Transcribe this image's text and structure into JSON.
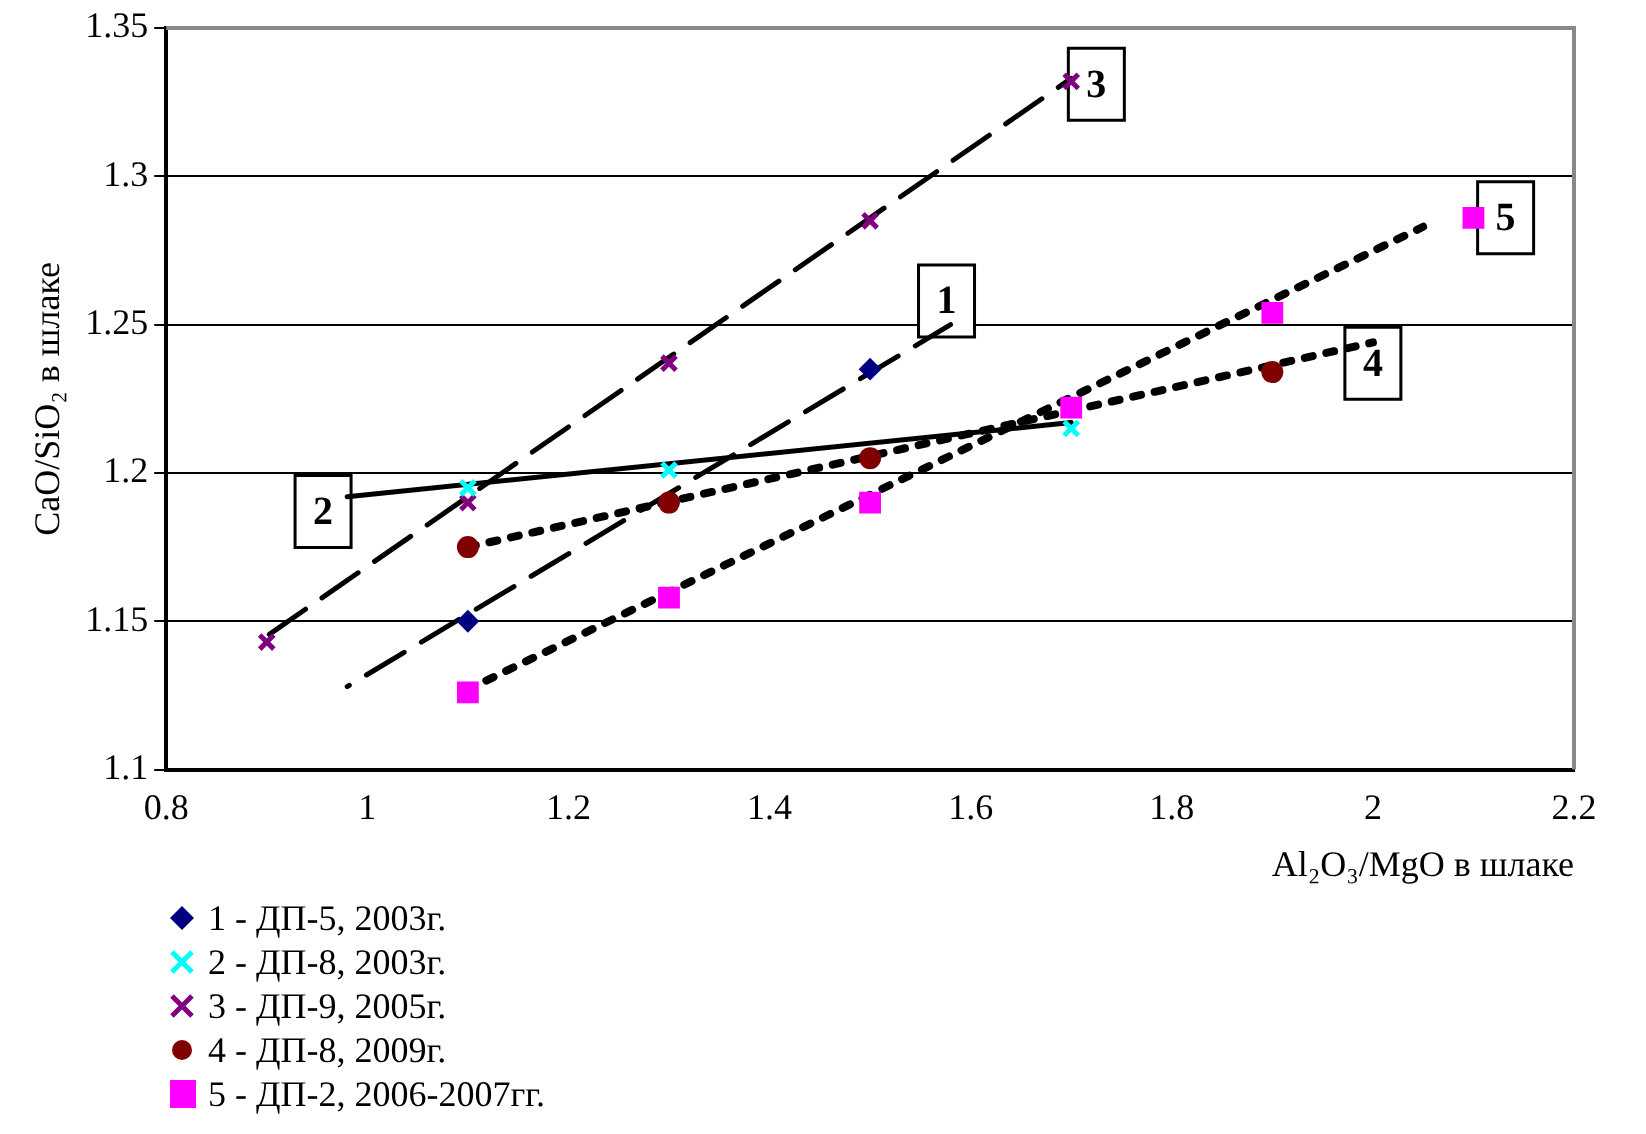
{
  "chart_data": {
    "type": "scatter",
    "xlabel": "Al₂O₃/MgO в шлаке",
    "ylabel": "CaO/SiO₂ в шлаке",
    "xlim": [
      0.8,
      2.2
    ],
    "xticks": [
      0.8,
      1,
      1.2,
      1.4,
      1.6,
      1.8,
      2,
      2.2
    ],
    "ylim": [
      1.1,
      1.35
    ],
    "yticks": [
      1.1,
      1.15,
      1.2,
      1.25,
      1.3,
      1.35
    ],
    "grid": "y",
    "legend": "bottom",
    "series": [
      {
        "name": "1 - ДП-5, 2003г.",
        "type": "scatter",
        "marker": "diamond",
        "color": "#000080",
        "x": [
          1.1,
          1.5
        ],
        "values": [
          1.15,
          1.235
        ]
      },
      {
        "name": "2 - ДП-8, 2003г.",
        "type": "scatter",
        "marker": "cross",
        "color": "#00ffff",
        "x": [
          1.1,
          1.3,
          1.7
        ],
        "values": [
          1.195,
          1.201,
          1.215
        ]
      },
      {
        "name": "3 - ДП-9, 2005г.",
        "type": "scatter",
        "marker": "cross",
        "color": "#800080",
        "x": [
          0.9,
          1.1,
          1.3,
          1.5,
          1.7
        ],
        "values": [
          1.143,
          1.19,
          1.237,
          1.285,
          1.332
        ]
      },
      {
        "name": "4 - ДП-8, 2009г.",
        "type": "scatter",
        "marker": "circle",
        "color": "#800000",
        "x": [
          1.1,
          1.3,
          1.5,
          1.9
        ],
        "values": [
          1.175,
          1.19,
          1.205,
          1.234
        ]
      },
      {
        "name": "5 - ДП-2, 2006-2007гг.",
        "type": "scatter",
        "marker": "square",
        "color": "#ff00ff",
        "x": [
          1.1,
          1.3,
          1.5,
          1.7,
          1.9,
          2.1
        ],
        "values": [
          1.126,
          1.158,
          1.19,
          1.222,
          1.254,
          1.286
        ]
      },
      {
        "type": "line",
        "marker": "none",
        "line_style": "dashed",
        "color": "#000000",
        "x": [
          0.98,
          1.58
        ],
        "values": [
          1.128,
          1.25
        ]
      },
      {
        "type": "line",
        "marker": "none",
        "line_style": "solid",
        "color": "#000000",
        "x": [
          0.98,
          1.7
        ],
        "values": [
          1.192,
          1.217
        ]
      },
      {
        "type": "line",
        "marker": "none",
        "line_style": "dashed",
        "color": "#000000",
        "x": [
          0.9,
          1.7
        ],
        "values": [
          1.145,
          1.333
        ]
      },
      {
        "type": "line",
        "marker": "none",
        "line_style": "dotted",
        "color": "#000000",
        "x": [
          1.1,
          2.0
        ],
        "values": [
          1.175,
          1.244
        ]
      },
      {
        "type": "line",
        "marker": "none",
        "line_style": "dotted",
        "color": "#000000",
        "x": [
          1.1,
          2.05
        ],
        "values": [
          1.127,
          1.283
        ]
      }
    ],
    "annotations": [
      {
        "text": "1",
        "x": 1.576,
        "y": 1.258
      },
      {
        "text": "2",
        "x": 0.956,
        "y": 1.187
      },
      {
        "text": "3",
        "x": 1.725,
        "y": 1.331
      },
      {
        "text": "4",
        "x": 2.0,
        "y": 1.237
      },
      {
        "text": "5",
        "x": 2.132,
        "y": 1.286
      }
    ]
  }
}
